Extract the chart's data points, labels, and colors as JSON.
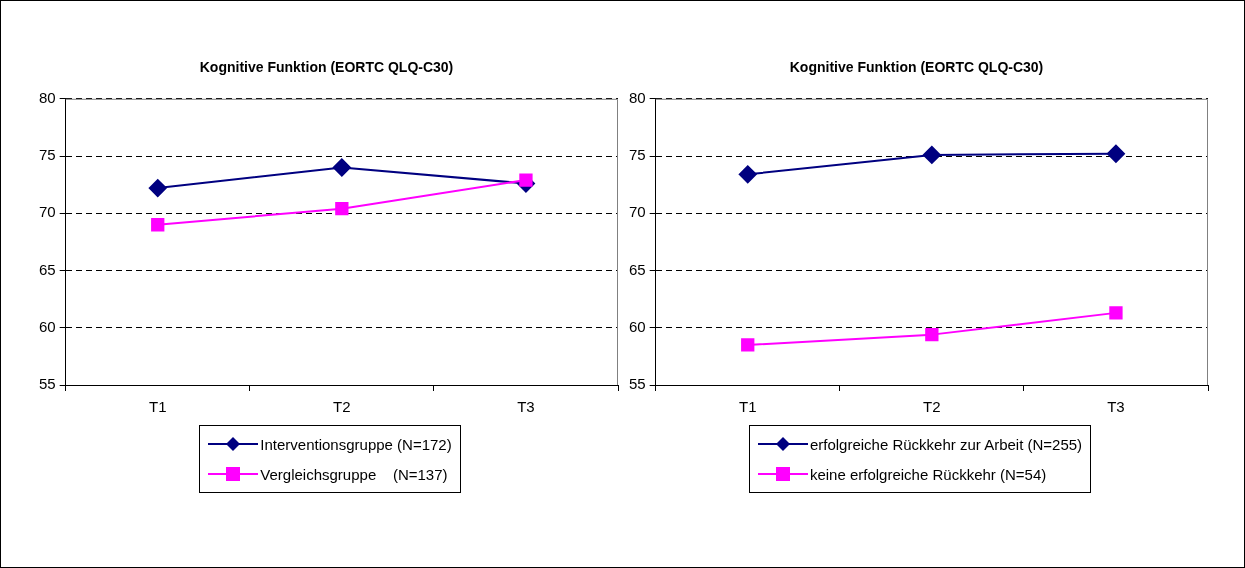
{
  "chart_data": [
    {
      "type": "line",
      "title": "Kognitive Funktion (EORTC QLQ-C30)",
      "categories": [
        "T1",
        "T2",
        "T3"
      ],
      "series": [
        {
          "name": "Interventionsgruppe (N=172)",
          "color": "#000080",
          "marker": "diamond",
          "values": [
            72.2,
            74.0,
            72.6
          ]
        },
        {
          "name": "Vergleichsgruppe    (N=137)",
          "color": "#ff00ff",
          "marker": "square",
          "values": [
            69.0,
            70.4,
            72.9
          ]
        }
      ],
      "ylim": [
        55,
        80
      ],
      "yticks": [
        55,
        60,
        65,
        70,
        75,
        80
      ],
      "grid": "y",
      "legend": "bottom"
    },
    {
      "type": "line",
      "title": "Kognitive Funktion (EORTC QLQ-C30)",
      "categories": [
        "T1",
        "T2",
        "T3"
      ],
      "series": [
        {
          "name": "erfolgreiche Rückkehr zur Arbeit (N=255)",
          "color": "#000080",
          "marker": "diamond",
          "values": [
            73.4,
            75.1,
            75.2
          ]
        },
        {
          "name": "keine erfolgreiche Rückkehr (N=54)",
          "color": "#ff00ff",
          "marker": "square",
          "values": [
            58.5,
            59.4,
            61.3
          ]
        }
      ],
      "ylim": [
        55,
        80
      ],
      "yticks": [
        55,
        60,
        65,
        70,
        75,
        80
      ],
      "grid": "y",
      "legend": "bottom"
    }
  ]
}
